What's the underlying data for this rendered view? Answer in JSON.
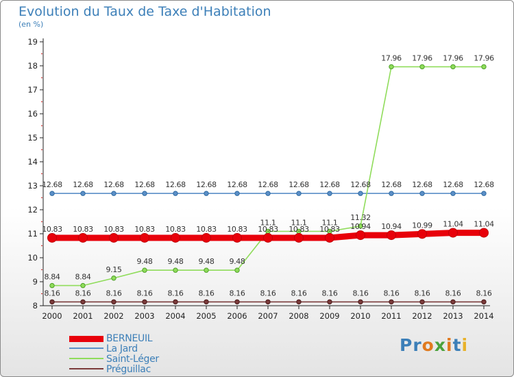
{
  "title": "Evolution du Taux de Taxe d'Habitation",
  "subtitle": "(en %)",
  "brand": {
    "letters": [
      "P",
      "r",
      "o",
      "x",
      "i",
      "t",
      "i"
    ],
    "colors": [
      "#3c7fb8",
      "#3c7fb8",
      "#e07a1f",
      "#4aa23c",
      "#e07a1f",
      "#3c7fb8",
      "#e8b22a"
    ]
  },
  "chart_data": {
    "type": "line",
    "x": [
      "2000",
      "2001",
      "2002",
      "2003",
      "2004",
      "2005",
      "2006",
      "2007",
      "2008",
      "2009",
      "2010",
      "2011",
      "2012",
      "2013",
      "2014"
    ],
    "ylim": [
      8,
      19
    ],
    "yticks": [
      "8",
      "9",
      "10",
      "11",
      "12",
      "13",
      "14",
      "15",
      "16",
      "17",
      "18",
      "19"
    ],
    "series": [
      {
        "name": "BERNEUIL",
        "color": "#e8000a",
        "emphasis": true,
        "values": [
          10.83,
          10.83,
          10.83,
          10.83,
          10.83,
          10.83,
          10.83,
          10.83,
          10.83,
          10.83,
          10.94,
          10.94,
          10.99,
          11.04,
          11.04
        ],
        "labels": [
          "10.83",
          "10.83",
          "10.83",
          "10.83",
          "10.83",
          "10.83",
          "10.83",
          "10.83",
          "10.83",
          "10.83",
          "10.94",
          "10.94",
          "10.99",
          "11.04",
          "11.04"
        ]
      },
      {
        "name": "La Jard",
        "color": "#5b8fc7",
        "emphasis": false,
        "values": [
          12.68,
          12.68,
          12.68,
          12.68,
          12.68,
          12.68,
          12.68,
          12.68,
          12.68,
          12.68,
          12.68,
          12.68,
          12.68,
          12.68,
          12.68
        ],
        "labels": [
          "12.68",
          "12.68",
          "12.68",
          "12.68",
          "12.68",
          "12.68",
          "12.68",
          "12.68",
          "12.68",
          "12.68",
          "12.68",
          "12.68",
          "12.68",
          "12.68",
          "12.68"
        ]
      },
      {
        "name": "Saint-Léger",
        "color": "#8fdc5a",
        "emphasis": false,
        "values": [
          8.84,
          8.84,
          9.15,
          9.48,
          9.48,
          9.48,
          9.48,
          11.1,
          11.1,
          11.1,
          11.32,
          17.96,
          17.96,
          17.96,
          17.96
        ],
        "labels": [
          "8.84",
          "8.84",
          "9.15",
          "9.48",
          "9.48",
          "9.48",
          "9.48",
          "11.1",
          "11.1",
          "11.1",
          "11.32",
          "17.96",
          "17.96",
          "17.96",
          "17.96"
        ]
      },
      {
        "name": "Préguillac",
        "color": "#7a3a3a",
        "emphasis": false,
        "values": [
          8.16,
          8.16,
          8.16,
          8.16,
          8.16,
          8.16,
          8.16,
          8.16,
          8.16,
          8.16,
          8.16,
          8.16,
          8.16,
          8.16,
          8.16
        ],
        "labels": [
          "8.16",
          "8.16",
          "8.16",
          "8.16",
          "8.16",
          "8.16",
          "8.16",
          "8.16",
          "8.16",
          "8.16",
          "8.16",
          "8.16",
          "8.16",
          "8.16",
          "8.16"
        ]
      }
    ]
  }
}
